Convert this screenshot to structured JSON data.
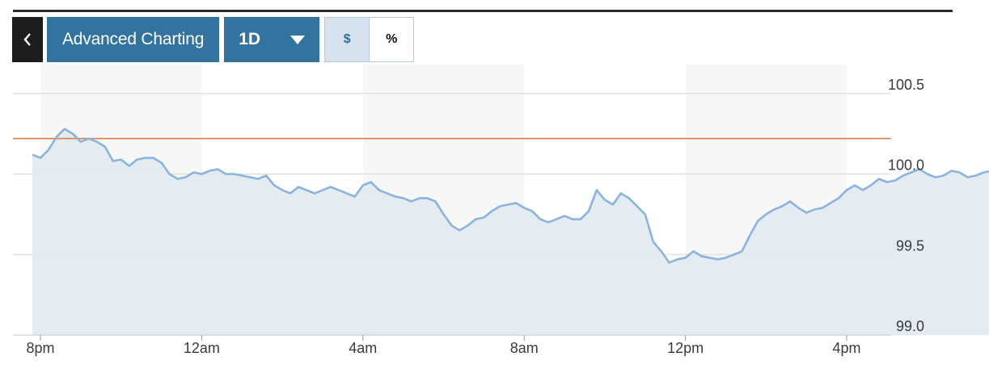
{
  "toolbar": {
    "back_icon": "chevron-left-icon",
    "title": "Advanced Charting",
    "range": "1D",
    "range_icon": "caret-down-icon",
    "unit_dollar": "$",
    "unit_percent": "%",
    "selected_unit": "$"
  },
  "colors": {
    "line": "#8ab4df",
    "area": "#e1eaf1",
    "reference": "#e07b4a",
    "button": "#33739f",
    "band": "#f7f7f7"
  },
  "chart_data": {
    "type": "area",
    "title": "",
    "xlabel": "",
    "ylabel": "",
    "x_ticks": [
      "8pm",
      "12am",
      "4am",
      "8am",
      "12pm",
      "4pm"
    ],
    "y_ticks": [
      "100.5",
      "100.0",
      "99.5",
      "99.0"
    ],
    "ylim": [
      99.0,
      100.5
    ],
    "grid": true,
    "y_axis_side": "right",
    "reference_line": 100.22,
    "x_unit": "hours since 8pm",
    "points": [
      [
        -0.2,
        100.12
      ],
      [
        0.0,
        100.1
      ],
      [
        0.2,
        100.15
      ],
      [
        0.4,
        100.23
      ],
      [
        0.6,
        100.28
      ],
      [
        0.8,
        100.25
      ],
      [
        1.0,
        100.2
      ],
      [
        1.2,
        100.22
      ],
      [
        1.4,
        100.2
      ],
      [
        1.6,
        100.17
      ],
      [
        1.8,
        100.08
      ],
      [
        2.0,
        100.09
      ],
      [
        2.2,
        100.05
      ],
      [
        2.4,
        100.09
      ],
      [
        2.6,
        100.1
      ],
      [
        2.8,
        100.1
      ],
      [
        3.0,
        100.07
      ],
      [
        3.2,
        100.0
      ],
      [
        3.4,
        99.97
      ],
      [
        3.6,
        99.98
      ],
      [
        3.8,
        100.01
      ],
      [
        4.0,
        100.0
      ],
      [
        4.2,
        100.02
      ],
      [
        4.4,
        100.03
      ],
      [
        4.6,
        100.0
      ],
      [
        4.8,
        100.0
      ],
      [
        5.0,
        99.99
      ],
      [
        5.2,
        99.98
      ],
      [
        5.4,
        99.97
      ],
      [
        5.6,
        99.99
      ],
      [
        5.8,
        99.93
      ],
      [
        6.0,
        99.9
      ],
      [
        6.2,
        99.88
      ],
      [
        6.4,
        99.92
      ],
      [
        6.6,
        99.9
      ],
      [
        6.8,
        99.88
      ],
      [
        7.0,
        99.9
      ],
      [
        7.2,
        99.92
      ],
      [
        7.4,
        99.9
      ],
      [
        7.6,
        99.88
      ],
      [
        7.8,
        99.86
      ],
      [
        8.0,
        99.93
      ],
      [
        8.2,
        99.95
      ],
      [
        8.4,
        99.9
      ],
      [
        8.6,
        99.88
      ],
      [
        8.8,
        99.86
      ],
      [
        9.0,
        99.85
      ],
      [
        9.2,
        99.83
      ],
      [
        9.4,
        99.85
      ],
      [
        9.6,
        99.85
      ],
      [
        9.8,
        99.83
      ],
      [
        10.0,
        99.75
      ],
      [
        10.2,
        99.68
      ],
      [
        10.4,
        99.65
      ],
      [
        10.6,
        99.68
      ],
      [
        10.8,
        99.72
      ],
      [
        11.0,
        99.73
      ],
      [
        11.2,
        99.77
      ],
      [
        11.4,
        99.8
      ],
      [
        11.6,
        99.81
      ],
      [
        11.8,
        99.82
      ],
      [
        12.0,
        99.79
      ],
      [
        12.2,
        99.77
      ],
      [
        12.4,
        99.72
      ],
      [
        12.6,
        99.7
      ],
      [
        12.8,
        99.72
      ],
      [
        13.0,
        99.74
      ],
      [
        13.2,
        99.72
      ],
      [
        13.4,
        99.72
      ],
      [
        13.6,
        99.77
      ],
      [
        13.8,
        99.9
      ],
      [
        14.0,
        99.84
      ],
      [
        14.2,
        99.81
      ],
      [
        14.4,
        99.88
      ],
      [
        14.6,
        99.85
      ],
      [
        14.8,
        99.8
      ],
      [
        15.0,
        99.75
      ],
      [
        15.2,
        99.58
      ],
      [
        15.4,
        99.52
      ],
      [
        15.6,
        99.45
      ],
      [
        15.8,
        99.47
      ],
      [
        16.0,
        99.48
      ],
      [
        16.2,
        99.52
      ],
      [
        16.4,
        99.49
      ],
      [
        16.6,
        99.48
      ],
      [
        16.8,
        99.47
      ],
      [
        17.0,
        99.48
      ],
      [
        17.2,
        99.5
      ],
      [
        17.4,
        99.52
      ],
      [
        17.6,
        99.62
      ],
      [
        17.8,
        99.71
      ],
      [
        18.0,
        99.75
      ],
      [
        18.2,
        99.78
      ],
      [
        18.4,
        99.8
      ],
      [
        18.6,
        99.83
      ],
      [
        18.8,
        99.79
      ],
      [
        19.0,
        99.76
      ],
      [
        19.2,
        99.78
      ],
      [
        19.4,
        99.79
      ],
      [
        19.6,
        99.82
      ],
      [
        19.8,
        99.85
      ],
      [
        20.0,
        99.9
      ],
      [
        20.2,
        99.93
      ],
      [
        20.4,
        99.9
      ],
      [
        20.6,
        99.93
      ],
      [
        20.8,
        99.97
      ],
      [
        21.0,
        99.95
      ],
      [
        21.2,
        99.96
      ],
      [
        21.4,
        99.99
      ],
      [
        21.6,
        100.01
      ],
      [
        21.8,
        100.03
      ],
      [
        22.0,
        100.0
      ],
      [
        22.2,
        99.98
      ],
      [
        22.4,
        99.99
      ],
      [
        22.6,
        100.02
      ],
      [
        22.8,
        100.01
      ],
      [
        23.0,
        99.98
      ],
      [
        23.2,
        99.99
      ],
      [
        23.4,
        100.01
      ],
      [
        23.6,
        100.02
      ],
      [
        23.8,
        100.03
      ],
      [
        24.0,
        100.02
      ],
      [
        24.2,
        100.03
      ]
    ]
  }
}
